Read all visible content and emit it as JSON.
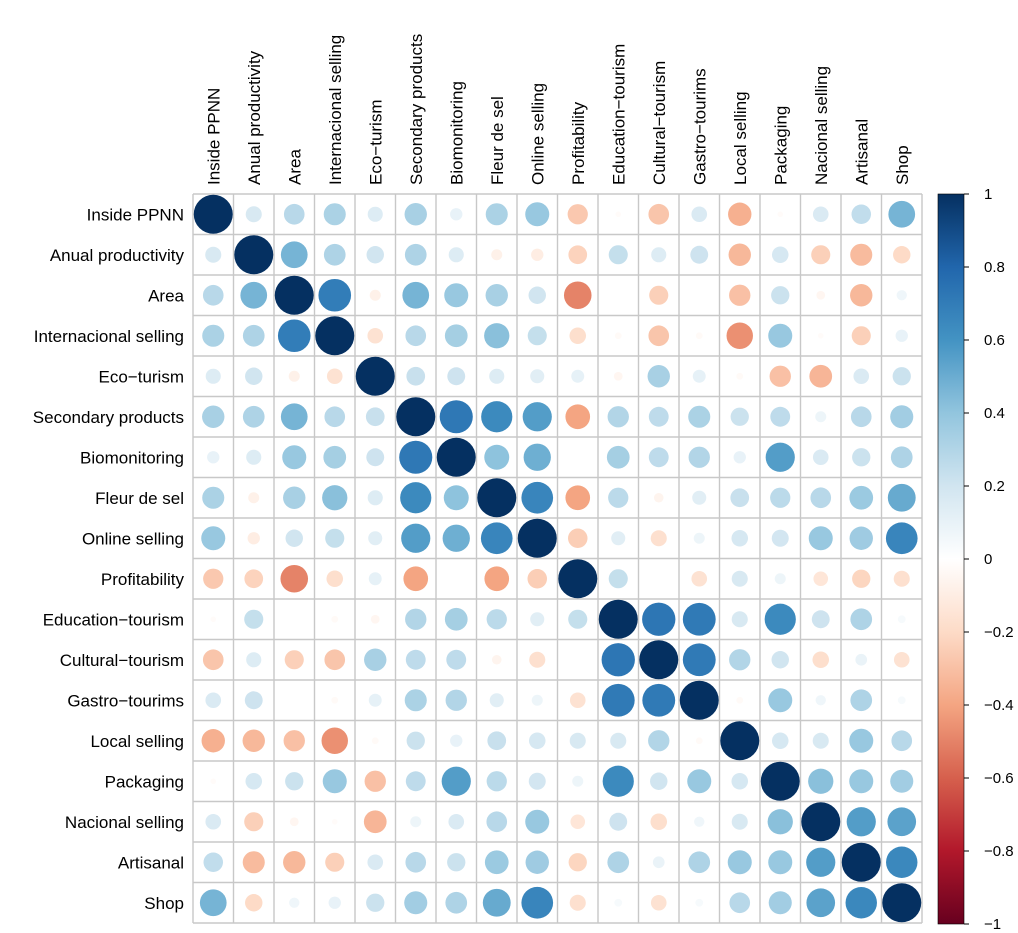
{
  "chart_data": {
    "type": "heatmap",
    "subtype": "correlation-circles",
    "variables": [
      "Inside PPNN",
      "Anual productivity",
      "Area",
      "Internacional selling",
      "Eco−turism",
      "Secondary products",
      "Biomonitoring",
      "Fleur de sel",
      "Online selling",
      "Profitability",
      "Education−tourism",
      "Cultural−tourism",
      "Gastro−tourims",
      "Local selling",
      "Packaging",
      "Nacional selling",
      "Artisanal",
      "Shop"
    ],
    "values": [
      [
        1.0,
        0.17,
        0.28,
        0.32,
        0.15,
        0.33,
        0.1,
        0.32,
        0.38,
        -0.27,
        -0.02,
        -0.28,
        0.16,
        -0.36,
        -0.02,
        0.16,
        0.25,
        0.47
      ],
      [
        0.17,
        1.0,
        0.47,
        0.31,
        0.2,
        0.31,
        0.15,
        -0.08,
        -0.1,
        -0.23,
        0.24,
        0.15,
        0.21,
        -0.33,
        0.18,
        -0.24,
        -0.32,
        -0.2
      ],
      [
        0.28,
        0.47,
        1.0,
        0.7,
        -0.08,
        0.47,
        0.38,
        0.33,
        0.2,
        -0.5,
        0.0,
        -0.24,
        0.0,
        -0.3,
        0.22,
        -0.05,
        -0.33,
        0.07
      ],
      [
        0.32,
        0.31,
        0.7,
        1.0,
        -0.16,
        0.28,
        0.34,
        0.42,
        0.24,
        -0.18,
        -0.03,
        -0.28,
        -0.03,
        -0.46,
        0.38,
        -0.02,
        -0.24,
        0.1
      ],
      [
        0.15,
        0.2,
        -0.08,
        -0.16,
        1.0,
        0.23,
        0.21,
        0.15,
        0.13,
        0.11,
        -0.05,
        0.33,
        0.11,
        -0.03,
        -0.3,
        -0.34,
        0.16,
        0.22
      ],
      [
        0.33,
        0.31,
        0.47,
        0.28,
        0.23,
        1.0,
        0.72,
        0.64,
        0.56,
        -0.4,
        0.3,
        0.26,
        0.32,
        0.22,
        0.26,
        0.08,
        0.28,
        0.35
      ],
      [
        0.1,
        0.15,
        0.38,
        0.34,
        0.21,
        0.72,
        1.0,
        0.41,
        0.49,
        0.0,
        0.34,
        0.26,
        0.3,
        0.1,
        0.56,
        0.16,
        0.22,
        0.31
      ],
      [
        0.32,
        -0.08,
        0.33,
        0.42,
        0.15,
        0.64,
        0.41,
        1.0,
        0.66,
        -0.4,
        0.27,
        -0.06,
        0.13,
        0.23,
        0.27,
        0.28,
        0.37,
        0.51
      ],
      [
        0.38,
        -0.1,
        0.2,
        0.24,
        0.13,
        0.56,
        0.49,
        0.66,
        1.0,
        -0.25,
        0.13,
        -0.17,
        0.08,
        0.18,
        0.19,
        0.38,
        0.36,
        0.66
      ],
      [
        -0.27,
        -0.23,
        -0.5,
        -0.18,
        0.11,
        -0.4,
        0.0,
        -0.4,
        -0.25,
        1.0,
        0.24,
        0.0,
        -0.16,
        0.17,
        0.08,
        -0.14,
        -0.22,
        -0.17
      ],
      [
        -0.02,
        0.24,
        0.0,
        -0.03,
        -0.05,
        0.3,
        0.34,
        0.27,
        0.13,
        0.24,
        1.0,
        0.73,
        0.71,
        0.17,
        0.64,
        0.21,
        0.31,
        0.04
      ],
      [
        -0.28,
        0.15,
        -0.24,
        -0.28,
        0.33,
        0.26,
        0.26,
        -0.06,
        -0.17,
        0.0,
        0.73,
        1.0,
        0.71,
        0.3,
        0.2,
        -0.18,
        0.09,
        -0.16
      ],
      [
        0.16,
        0.21,
        0.0,
        -0.03,
        0.11,
        0.32,
        0.3,
        0.13,
        0.08,
        -0.16,
        0.71,
        0.71,
        1.0,
        -0.03,
        0.38,
        0.07,
        0.31,
        0.04
      ],
      [
        -0.36,
        -0.33,
        -0.3,
        -0.46,
        -0.03,
        0.22,
        0.1,
        0.23,
        0.18,
        0.17,
        0.17,
        0.3,
        -0.03,
        1.0,
        0.18,
        0.17,
        0.38,
        0.28
      ],
      [
        -0.02,
        0.18,
        0.22,
        0.38,
        -0.3,
        0.26,
        0.56,
        0.27,
        0.19,
        0.08,
        0.64,
        0.2,
        0.38,
        0.18,
        1.0,
        0.42,
        0.38,
        0.35
      ],
      [
        0.16,
        -0.24,
        -0.05,
        -0.02,
        -0.34,
        0.08,
        0.16,
        0.28,
        0.38,
        -0.14,
        0.21,
        -0.18,
        0.07,
        0.17,
        0.42,
        1.0,
        0.56,
        0.54
      ],
      [
        0.25,
        -0.32,
        -0.33,
        -0.24,
        0.16,
        0.28,
        0.22,
        0.37,
        0.36,
        -0.22,
        0.31,
        0.09,
        0.31,
        0.38,
        0.38,
        0.56,
        1.0,
        0.65
      ],
      [
        0.47,
        -0.2,
        0.07,
        0.1,
        0.22,
        0.35,
        0.31,
        0.51,
        0.66,
        -0.17,
        0.04,
        -0.16,
        0.04,
        0.28,
        0.35,
        0.54,
        0.65,
        1.0
      ]
    ],
    "colorbar": {
      "ticks": [
        "1",
        "0.8",
        "0.6",
        "0.4",
        "0.2",
        "0",
        "−0.2",
        "−0.4",
        "−0.6",
        "−0.8",
        "−1"
      ],
      "range": [
        -1,
        1
      ],
      "colors": [
        "#67001F",
        "#B2182B",
        "#D6604D",
        "#F4A582",
        "#FDDBC7",
        "#FFFFFF",
        "#D1E5F0",
        "#92C5DE",
        "#4393C3",
        "#2166AC",
        "#053061"
      ]
    },
    "grid": true,
    "legend": "right"
  }
}
